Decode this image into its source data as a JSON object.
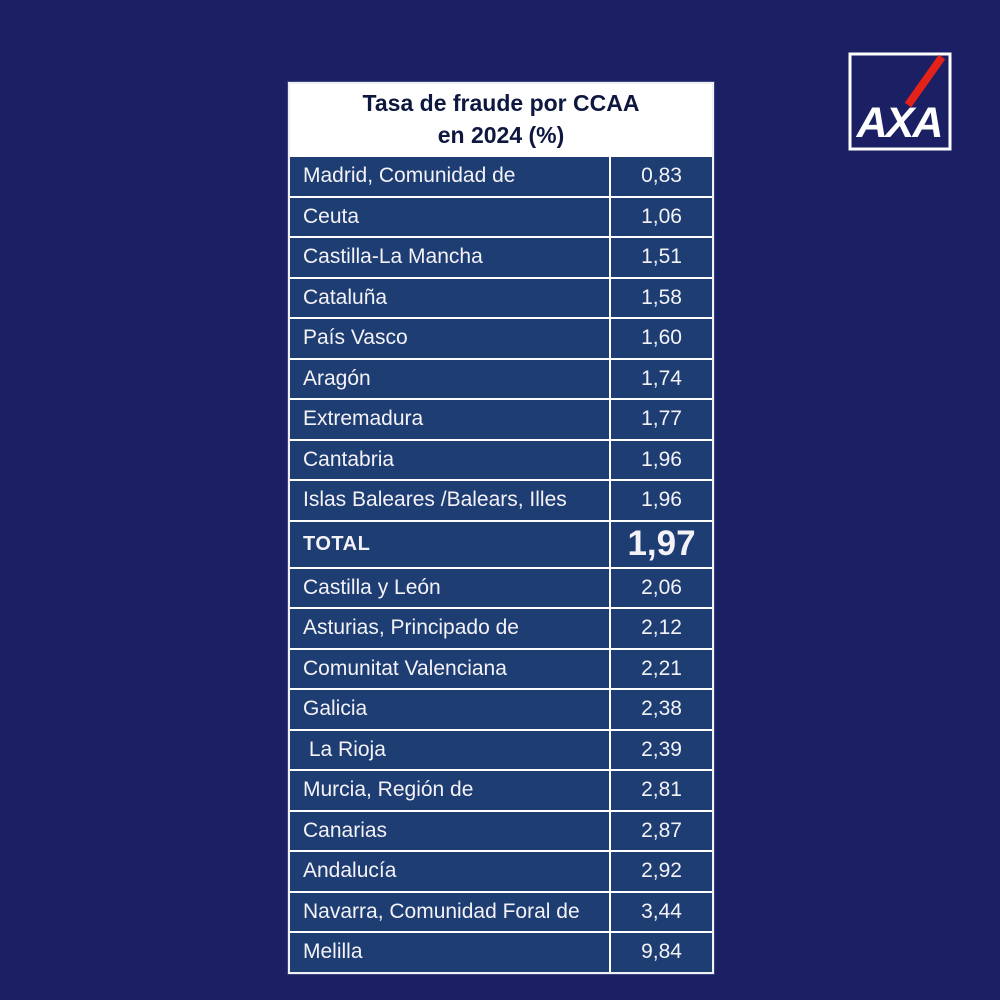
{
  "page": {
    "background_color": "#1a2063"
  },
  "logo": {
    "brand": "AXA",
    "text": "AXA",
    "square_border_color": "#ffffff",
    "slash_color": "#e32219",
    "text_color": "#ffffff"
  },
  "table": {
    "title_line1": "Tasa de fraude por CCAA",
    "title_line2": "en 2024 (%)",
    "row_background": "#1d3d73",
    "border_color": "#ffffff",
    "text_color": "#f4f2f6",
    "title_text_color": "#0e173f",
    "rows": [
      {
        "region": "Madrid, Comunidad de",
        "value": "0,83"
      },
      {
        "region": "Ceuta",
        "value": "1,06"
      },
      {
        "region": "Castilla-La Mancha",
        "value": "1,51"
      },
      {
        "region": "Cataluña",
        "value": "1,58"
      },
      {
        "region": "País Vasco",
        "value": "1,60"
      },
      {
        "region": "Aragón",
        "value": "1,74"
      },
      {
        "region": "Extremadura",
        "value": "1,77"
      },
      {
        "region": "Cantabria",
        "value": "1,96"
      },
      {
        "region": "Islas Baleares /Balears, Illes",
        "value": "1,96"
      },
      {
        "region": "TOTAL",
        "value": "1,97",
        "is_total": true
      },
      {
        "region": "Castilla y León",
        "value": "2,06"
      },
      {
        "region": "Asturias, Principado de",
        "value": "2,12"
      },
      {
        "region": "Comunitat Valenciana",
        "value": "2,21"
      },
      {
        "region": "Galicia",
        "value": "2,38"
      },
      {
        "region": " La Rioja",
        "value": "2,39"
      },
      {
        "region": "Murcia, Región de",
        "value": "2,81"
      },
      {
        "region": "Canarias",
        "value": "2,87"
      },
      {
        "region": "Andalucía",
        "value": "2,92"
      },
      {
        "region": "Navarra, Comunidad Foral de",
        "value": "3,44"
      },
      {
        "region": "Melilla",
        "value": "9,84"
      }
    ]
  },
  "chart_data": {
    "type": "table",
    "title": "Tasa de fraude por CCAA en 2024 (%)",
    "columns": [
      "CCAA",
      "Tasa de fraude (%)"
    ],
    "categories": [
      "Madrid, Comunidad de",
      "Ceuta",
      "Castilla-La Mancha",
      "Cataluña",
      "País Vasco",
      "Aragón",
      "Extremadura",
      "Cantabria",
      "Islas Baleares /Balears, Illes",
      "Castilla y León",
      "Asturias, Principado de",
      "Comunitat Valenciana",
      "Galicia",
      "La Rioja",
      "Murcia, Región de",
      "Canarias",
      "Andalucía",
      "Navarra, Comunidad Foral de",
      "Melilla"
    ],
    "values": [
      0.83,
      1.06,
      1.51,
      1.58,
      1.6,
      1.74,
      1.77,
      1.96,
      1.96,
      2.06,
      2.12,
      2.21,
      2.38,
      2.39,
      2.81,
      2.87,
      2.92,
      3.44,
      9.84
    ],
    "total": {
      "label": "TOTAL",
      "value": 1.97
    },
    "number_format": "comma-decimal",
    "sort_order": "ascending"
  }
}
